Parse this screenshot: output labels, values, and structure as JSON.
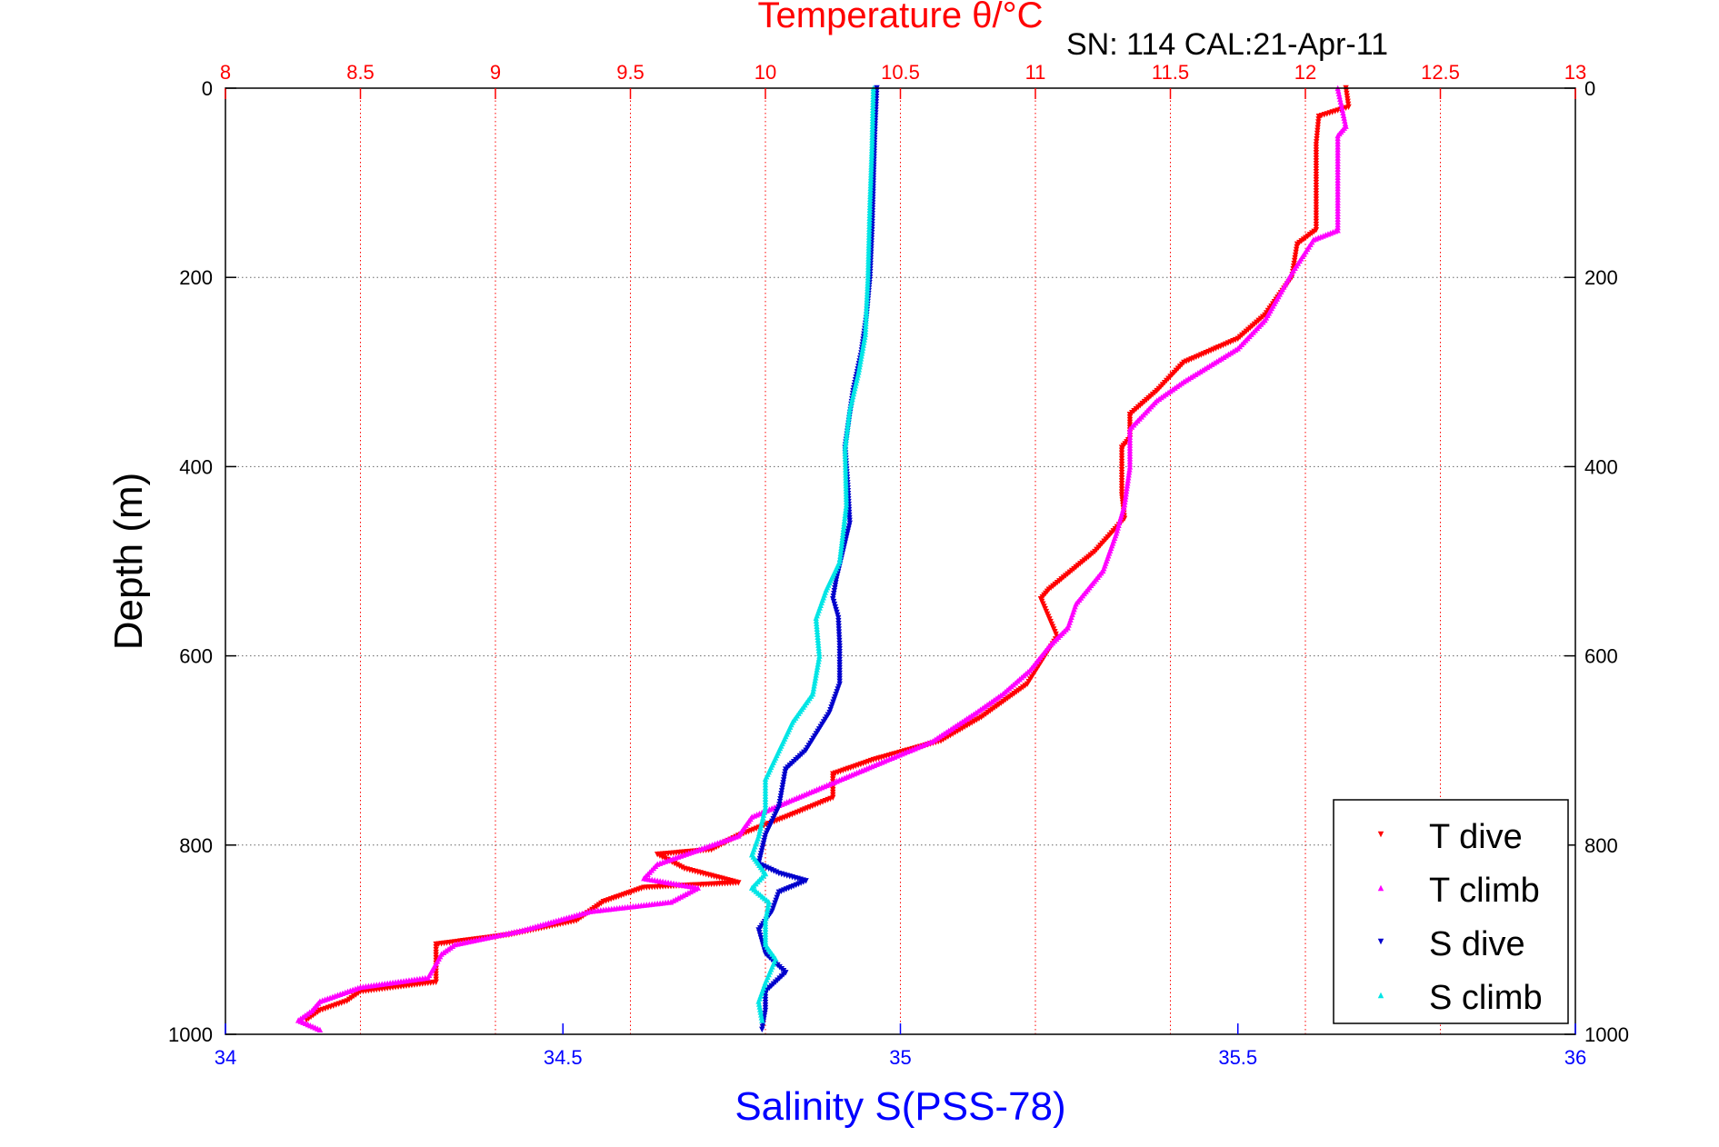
{
  "chart_data": {
    "type": "scatter",
    "title": "Temperature θ/°C",
    "subtitle": "SN: 114  CAL:21-Apr-11",
    "xlabel_bottom": "Salinity S(PSS-78)",
    "xlabel_top": "Temperature θ/°C",
    "ylabel": "Depth (m)",
    "ylim": [
      1000,
      0
    ],
    "y_reversed": true,
    "xlim_bottom": [
      34,
      36
    ],
    "xlim_top": [
      8,
      13
    ],
    "bottom_ticks": [
      "34",
      "34.5",
      "35",
      "35.5",
      "36"
    ],
    "top_ticks": [
      "8",
      "8.5",
      "9",
      "9.5",
      "10",
      "10.5",
      "11",
      "11.5",
      "12",
      "12.5",
      "13"
    ],
    "y_ticks": [
      "0",
      "200",
      "400",
      "600",
      "800",
      "1000"
    ],
    "grid": true,
    "legend_position": "bottom-right",
    "colors": {
      "temperature_axis": "#ff0000",
      "salinity_axis": "#0000ff",
      "t_dive": "#ff0000",
      "t_climb": "#ff00ff",
      "s_dive": "#0000cc",
      "s_climb": "#00e5e5"
    },
    "series": [
      {
        "name": "T dive",
        "axis": "top",
        "marker": "triangle-down",
        "color": "#ff0000",
        "points": [
          [
            12.15,
            0
          ],
          [
            12.16,
            20
          ],
          [
            12.05,
            30
          ],
          [
            12.04,
            60
          ],
          [
            12.04,
            100
          ],
          [
            12.04,
            150
          ],
          [
            11.97,
            165
          ],
          [
            11.95,
            200
          ],
          [
            11.85,
            240
          ],
          [
            11.75,
            265
          ],
          [
            11.55,
            290
          ],
          [
            11.45,
            320
          ],
          [
            11.35,
            345
          ],
          [
            11.35,
            370
          ],
          [
            11.32,
            380
          ],
          [
            11.32,
            430
          ],
          [
            11.33,
            455
          ],
          [
            11.22,
            490
          ],
          [
            11.05,
            530
          ],
          [
            11.02,
            540
          ],
          [
            11.08,
            580
          ],
          [
            10.97,
            630
          ],
          [
            10.8,
            665
          ],
          [
            10.65,
            690
          ],
          [
            10.4,
            710
          ],
          [
            10.25,
            725
          ],
          [
            10.25,
            750
          ],
          [
            10.08,
            770
          ],
          [
            9.9,
            790
          ],
          [
            9.8,
            805
          ],
          [
            9.6,
            810
          ],
          [
            9.7,
            825
          ],
          [
            9.9,
            840
          ],
          [
            9.55,
            845
          ],
          [
            9.4,
            860
          ],
          [
            9.3,
            880
          ],
          [
            9.05,
            895
          ],
          [
            8.78,
            905
          ],
          [
            8.78,
            945
          ],
          [
            8.5,
            955
          ],
          [
            8.45,
            965
          ],
          [
            8.35,
            975
          ],
          [
            8.3,
            985
          ]
        ]
      },
      {
        "name": "T climb",
        "axis": "top",
        "marker": "triangle-up",
        "color": "#ff00ff",
        "points": [
          [
            12.12,
            0
          ],
          [
            12.15,
            40
          ],
          [
            12.12,
            50
          ],
          [
            12.12,
            100
          ],
          [
            12.12,
            150
          ],
          [
            12.03,
            160
          ],
          [
            11.95,
            195
          ],
          [
            11.9,
            220
          ],
          [
            11.85,
            245
          ],
          [
            11.75,
            275
          ],
          [
            11.55,
            310
          ],
          [
            11.45,
            330
          ],
          [
            11.4,
            345
          ],
          [
            11.35,
            360
          ],
          [
            11.35,
            400
          ],
          [
            11.33,
            440
          ],
          [
            11.3,
            470
          ],
          [
            11.25,
            510
          ],
          [
            11.15,
            545
          ],
          [
            11.12,
            570
          ],
          [
            11.05,
            590
          ],
          [
            10.98,
            615
          ],
          [
            10.88,
            640
          ],
          [
            10.78,
            660
          ],
          [
            10.62,
            690
          ],
          [
            10.45,
            710
          ],
          [
            10.2,
            740
          ],
          [
            9.95,
            770
          ],
          [
            9.9,
            790
          ],
          [
            9.6,
            820
          ],
          [
            9.55,
            835
          ],
          [
            9.75,
            845
          ],
          [
            9.65,
            860
          ],
          [
            9.35,
            870
          ],
          [
            9.1,
            890
          ],
          [
            8.85,
            905
          ],
          [
            8.8,
            915
          ],
          [
            8.75,
            940
          ],
          [
            8.5,
            950
          ],
          [
            8.35,
            965
          ],
          [
            8.32,
            975
          ],
          [
            8.27,
            985
          ],
          [
            8.35,
            995
          ]
        ]
      },
      {
        "name": "S dive",
        "axis": "bottom",
        "marker": "triangle-down",
        "color": "#0000cc",
        "points": [
          [
            34.965,
            0
          ],
          [
            34.962,
            50
          ],
          [
            34.958,
            150
          ],
          [
            34.955,
            200
          ],
          [
            34.95,
            240
          ],
          [
            34.942,
            280
          ],
          [
            34.93,
            320
          ],
          [
            34.922,
            360
          ],
          [
            34.918,
            380
          ],
          [
            34.922,
            420
          ],
          [
            34.925,
            460
          ],
          [
            34.905,
            520
          ],
          [
            34.9,
            540
          ],
          [
            34.908,
            560
          ],
          [
            34.91,
            590
          ],
          [
            34.91,
            630
          ],
          [
            34.895,
            660
          ],
          [
            34.86,
            700
          ],
          [
            34.83,
            720
          ],
          [
            34.82,
            760
          ],
          [
            34.8,
            790
          ],
          [
            34.79,
            820
          ],
          [
            34.82,
            830
          ],
          [
            34.86,
            838
          ],
          [
            34.82,
            850
          ],
          [
            34.81,
            870
          ],
          [
            34.79,
            890
          ],
          [
            34.8,
            915
          ],
          [
            34.83,
            935
          ],
          [
            34.8,
            955
          ],
          [
            34.8,
            975
          ],
          [
            34.795,
            995
          ]
        ]
      },
      {
        "name": "S climb",
        "axis": "bottom",
        "marker": "triangle-up",
        "color": "#00e5e5",
        "points": [
          [
            34.96,
            0
          ],
          [
            34.958,
            60
          ],
          [
            34.955,
            120
          ],
          [
            34.952,
            200
          ],
          [
            34.948,
            260
          ],
          [
            34.938,
            300
          ],
          [
            34.925,
            340
          ],
          [
            34.918,
            380
          ],
          [
            34.92,
            440
          ],
          [
            34.91,
            500
          ],
          [
            34.89,
            530
          ],
          [
            34.875,
            560
          ],
          [
            34.88,
            600
          ],
          [
            34.87,
            640
          ],
          [
            34.84,
            670
          ],
          [
            34.82,
            700
          ],
          [
            34.8,
            730
          ],
          [
            34.8,
            760
          ],
          [
            34.79,
            790
          ],
          [
            34.78,
            810
          ],
          [
            34.8,
            830
          ],
          [
            34.78,
            845
          ],
          [
            34.805,
            860
          ],
          [
            34.8,
            880
          ],
          [
            34.8,
            905
          ],
          [
            34.815,
            920
          ],
          [
            34.8,
            945
          ],
          [
            34.79,
            965
          ],
          [
            34.795,
            985
          ]
        ]
      }
    ]
  }
}
